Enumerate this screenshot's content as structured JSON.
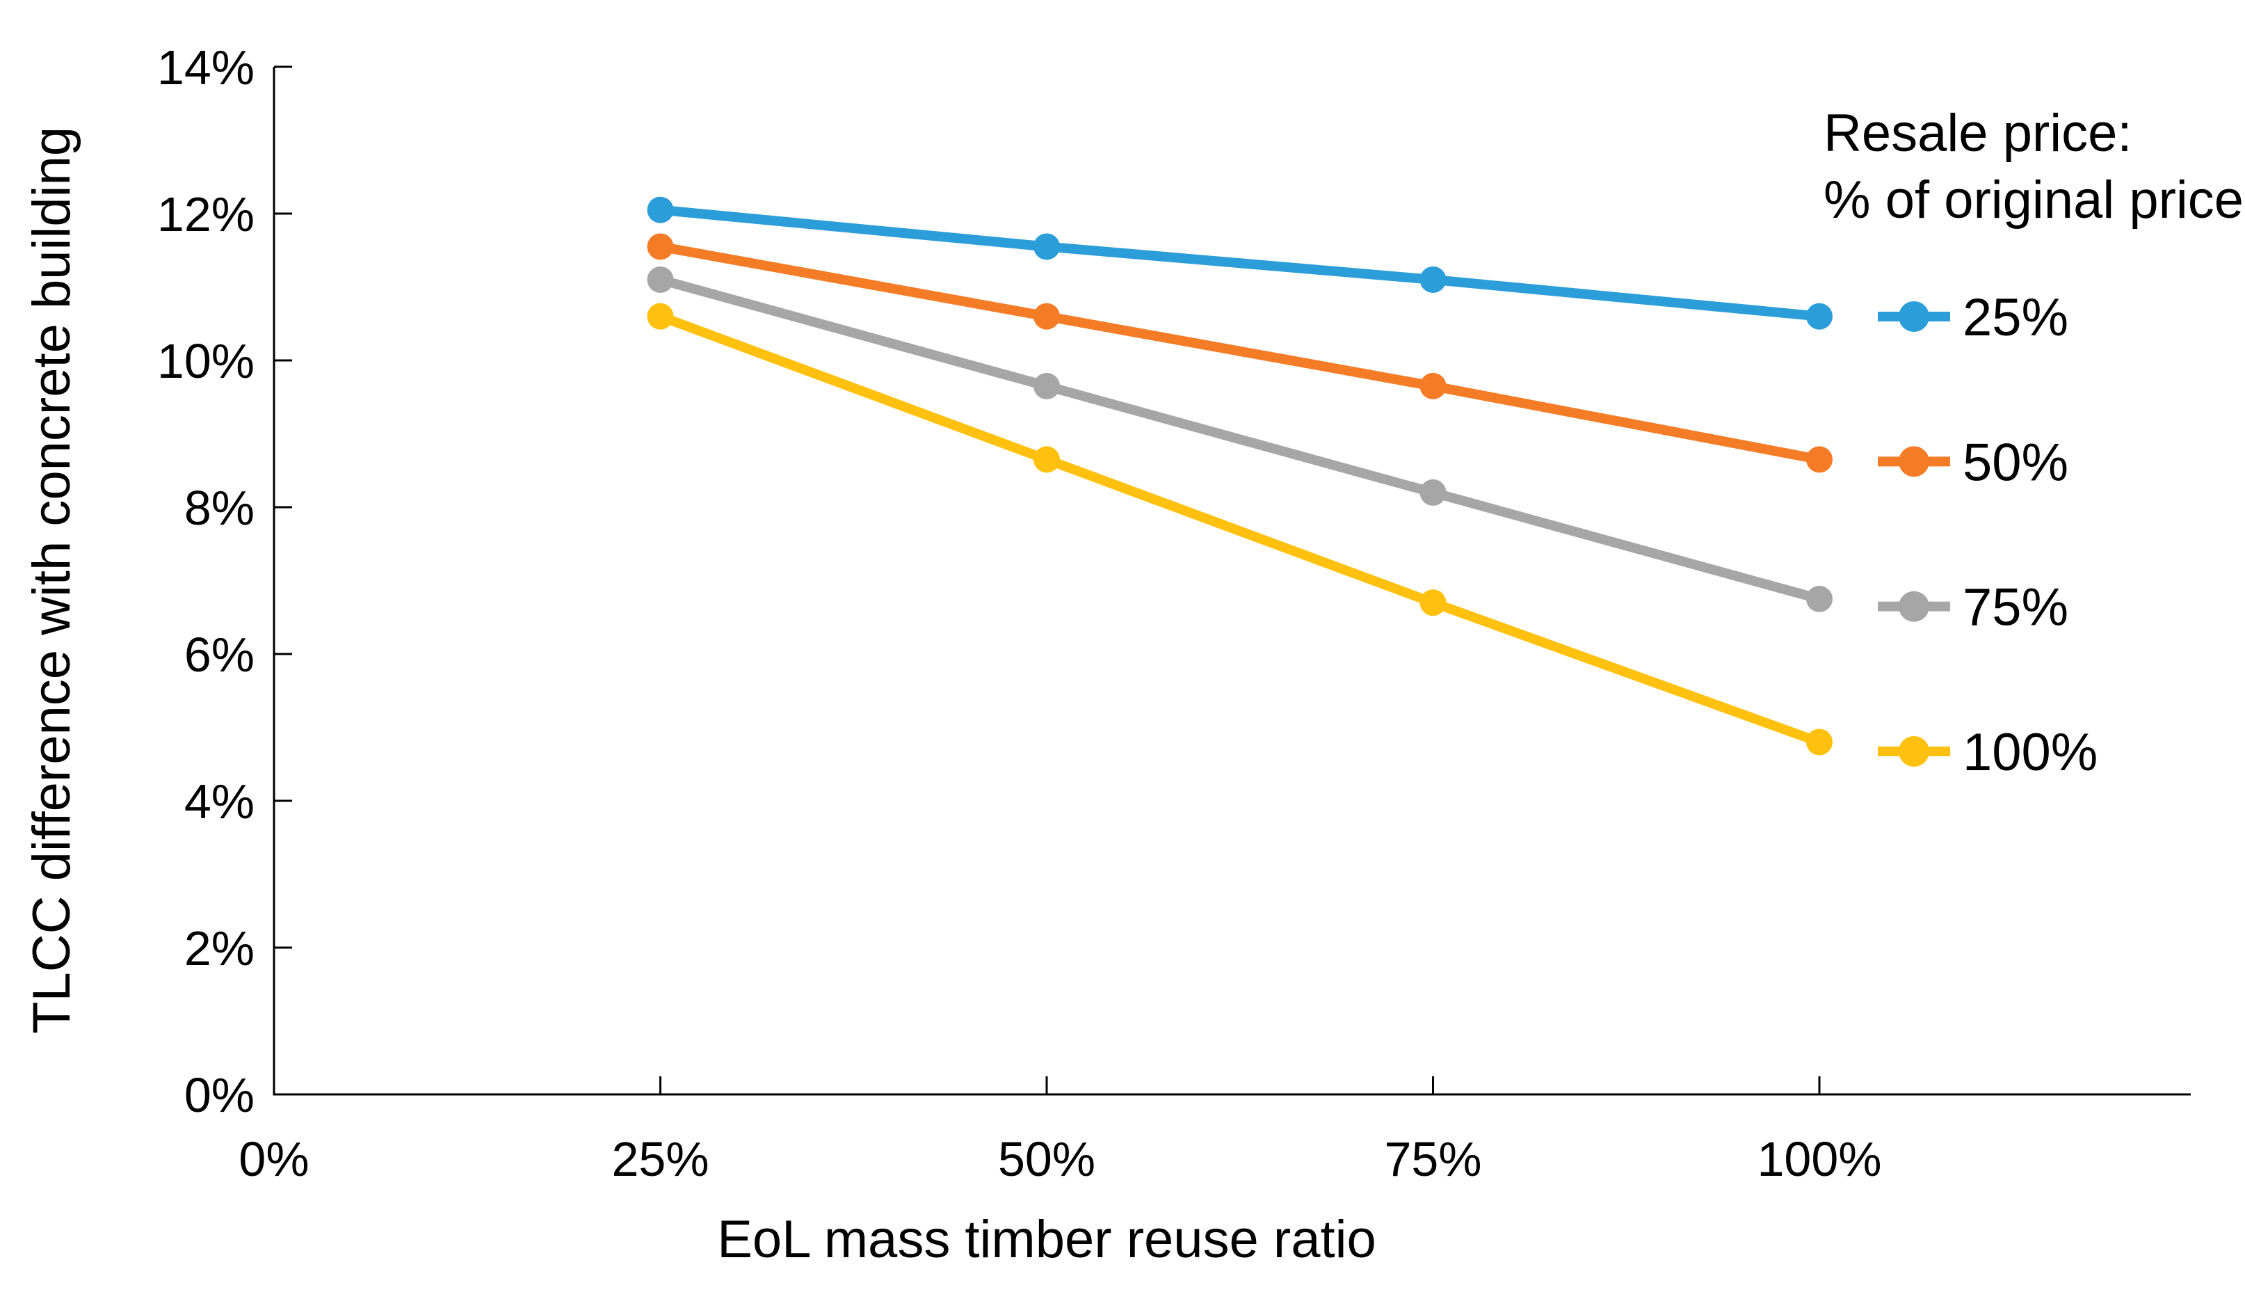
{
  "page": {
    "background_color": "#ffffff",
    "text_color": "#000000",
    "axis_color": "#000000"
  },
  "chart_data": {
    "type": "line",
    "title": "",
    "xlabel": "EoL mass timber reuse ratio",
    "ylabel": "TLCC difference with concrete building",
    "x": [
      25,
      50,
      75,
      100
    ],
    "x_tick_values": [
      0,
      25,
      50,
      75,
      100
    ],
    "x_tick_labels": [
      "0%",
      "25%",
      "50%",
      "75%",
      "100%"
    ],
    "y_tick_values": [
      0,
      2,
      4,
      6,
      8,
      10,
      12,
      14
    ],
    "y_tick_labels": [
      "0%",
      "2%",
      "4%",
      "6%",
      "8%",
      "10%",
      "12%",
      "14%"
    ],
    "xlim": [
      0,
      124
    ],
    "ylim": [
      0,
      14
    ],
    "grid": false,
    "marker": "circle",
    "legend": {
      "position": "right",
      "title_line1": "Resale price:",
      "title_line2": "% of original price",
      "entries": [
        "25%",
        "50%",
        "75%",
        "100%"
      ]
    },
    "series": [
      {
        "name": "25%",
        "color": "#2B9DD8",
        "values": [
          12.05,
          11.55,
          11.1,
          10.6
        ]
      },
      {
        "name": "50%",
        "color": "#F57C26",
        "values": [
          11.55,
          10.6,
          9.65,
          8.65
        ]
      },
      {
        "name": "75%",
        "color": "#A6A6A6",
        "values": [
          11.1,
          9.65,
          8.2,
          6.75
        ]
      },
      {
        "name": "100%",
        "color": "#FFC10E",
        "values": [
          10.6,
          8.65,
          6.7,
          4.8
        ]
      }
    ]
  }
}
